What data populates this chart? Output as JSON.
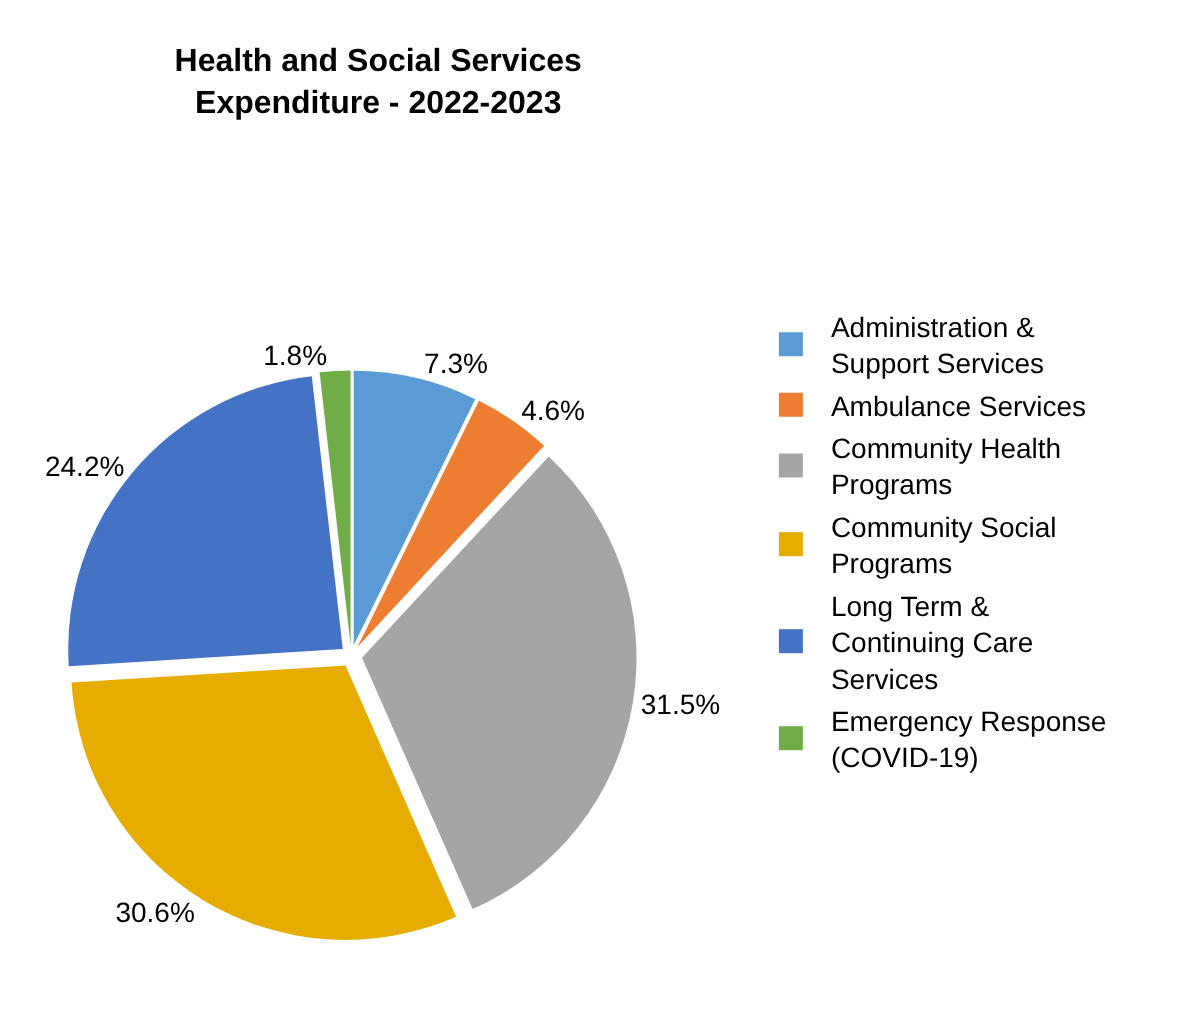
{
  "chart_data": {
    "type": "pie",
    "title": "Health and Social Services\nExpenditure - 2022-2023",
    "categories": [
      "Administration & Support Services",
      "Ambulance Services",
      "Community Health Programs",
      "Community Social Programs",
      "Long Term & Continuing Care Services",
      "Emergency Response (COVID-19)"
    ],
    "values": [
      7.3,
      4.6,
      31.5,
      30.6,
      24.2,
      1.8
    ],
    "value_labels": [
      "7.3%",
      "4.6%",
      "31.5%",
      "30.6%",
      "24.2%",
      "1.8%"
    ],
    "colors": [
      "#5b9bd5",
      "#ed7d31",
      "#a5a5a5",
      "#e6ac00",
      "#4472c4",
      "#70ad47"
    ],
    "legend": "right"
  }
}
